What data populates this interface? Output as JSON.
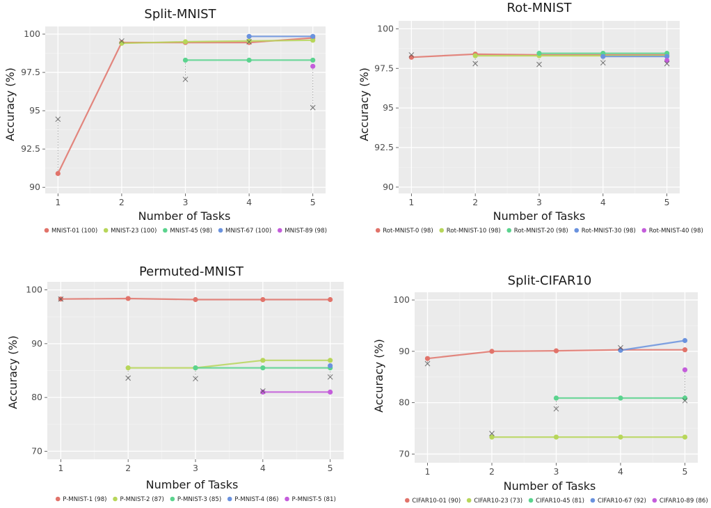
{
  "chart_data": [
    {
      "type": "line",
      "title": "Split-MNIST",
      "xlabel": "Number of Tasks",
      "ylabel": "Accuracy (%)",
      "x_ticks": [
        "1",
        "2",
        "3",
        "4",
        "5"
      ],
      "y_ticks": [
        "90",
        "92.5",
        "95",
        "97.5",
        "100"
      ],
      "ylim": [
        89.6,
        100.5
      ],
      "grid": true,
      "legend_position": "bottom",
      "series": [
        {
          "name": "MNIST-01 (100)",
          "color": "#E1736A",
          "x": [
            1,
            2,
            3,
            4,
            5
          ],
          "y": [
            90.9,
            99.45,
            99.45,
            99.45,
            99.75
          ]
        },
        {
          "name": "MNIST-23 (100)",
          "color": "#B7D65A",
          "x": [
            2,
            3,
            4,
            5
          ],
          "y": [
            99.4,
            99.5,
            99.55,
            99.6
          ]
        },
        {
          "name": "MNIST-45 (98)",
          "color": "#5BD38E",
          "x": [
            3,
            4,
            5
          ],
          "y": [
            98.3,
            98.3,
            98.3
          ]
        },
        {
          "name": "MNIST-67 (100)",
          "color": "#6A92DE",
          "x": [
            4,
            5
          ],
          "y": [
            99.85,
            99.85
          ]
        },
        {
          "name": "MNIST-89 (98)",
          "color": "#C45DDB",
          "x": [
            5
          ],
          "y": [
            97.9
          ]
        }
      ],
      "baseline_markers": [
        {
          "x": 1,
          "y": 94.45,
          "from_y": 90.9
        },
        {
          "x": 2,
          "y": 99.55,
          "from_y": 99.45
        },
        {
          "x": 3,
          "y": 97.05,
          "from_y": 98.3
        },
        {
          "x": 4,
          "y": 99.5,
          "from_y": 99.85
        },
        {
          "x": 5,
          "y": 95.2,
          "from_y": 97.9
        }
      ]
    },
    {
      "type": "line",
      "title": "Rot-MNIST",
      "xlabel": "Number of Tasks",
      "ylabel": "Accuracy (%)",
      "x_ticks": [
        "1",
        "2",
        "3",
        "4",
        "5"
      ],
      "y_ticks": [
        "90",
        "92.5",
        "95",
        "97.5",
        "100"
      ],
      "ylim": [
        89.6,
        100.5
      ],
      "grid": true,
      "legend_position": "bottom",
      "series": [
        {
          "name": "Rot-MNIST-0 (98)",
          "color": "#E1736A",
          "x": [
            1,
            2,
            3,
            4,
            5
          ],
          "y": [
            98.2,
            98.4,
            98.35,
            98.35,
            98.35
          ]
        },
        {
          "name": "Rot-MNIST-10 (98)",
          "color": "#B7D65A",
          "x": [
            2,
            3,
            4,
            5
          ],
          "y": [
            98.3,
            98.3,
            98.3,
            98.3
          ]
        },
        {
          "name": "Rot-MNIST-20 (98)",
          "color": "#5BD38E",
          "x": [
            3,
            4,
            5
          ],
          "y": [
            98.45,
            98.45,
            98.45
          ]
        },
        {
          "name": "Rot-MNIST-30 (98)",
          "color": "#6A92DE",
          "x": [
            4,
            5
          ],
          "y": [
            98.25,
            98.25
          ]
        },
        {
          "name": "Rot-MNIST-40 (98)",
          "color": "#C45DDB",
          "x": [
            5
          ],
          "y": [
            98.0
          ]
        }
      ],
      "baseline_markers": [
        {
          "x": 1,
          "y": 98.35,
          "from_y": 98.2
        },
        {
          "x": 2,
          "y": 97.8,
          "from_y": 98.3
        },
        {
          "x": 3,
          "y": 97.75,
          "from_y": 98.45
        },
        {
          "x": 4,
          "y": 97.85,
          "from_y": 98.25
        },
        {
          "x": 5,
          "y": 97.8,
          "from_y": 98.0
        }
      ]
    },
    {
      "type": "line",
      "title": "Permuted-MNIST",
      "xlabel": "Number of Tasks",
      "ylabel": "Accuracy (%)",
      "x_ticks": [
        "1",
        "2",
        "3",
        "4",
        "5"
      ],
      "y_ticks": [
        "70",
        "80",
        "90",
        "100"
      ],
      "ylim": [
        68.5,
        101.5
      ],
      "grid": true,
      "legend_position": "bottom",
      "series": [
        {
          "name": "P-MNIST-1 (98)",
          "color": "#E1736A",
          "x": [
            1,
            2,
            3,
            4,
            5
          ],
          "y": [
            98.3,
            98.4,
            98.2,
            98.2,
            98.2
          ]
        },
        {
          "name": "P-MNIST-2 (87)",
          "color": "#B7D65A",
          "x": [
            2,
            3,
            4,
            5
          ],
          "y": [
            85.5,
            85.5,
            86.9,
            86.9
          ]
        },
        {
          "name": "P-MNIST-3 (85)",
          "color": "#5BD38E",
          "x": [
            3,
            4,
            5
          ],
          "y": [
            85.5,
            85.5,
            85.5
          ]
        },
        {
          "name": "P-MNIST-4 (86)",
          "color": "#6A92DE",
          "x": [
            5
          ],
          "y": [
            85.9
          ]
        },
        {
          "name": "P-MNIST-5 (81)",
          "color": "#C45DDB",
          "x": [
            4,
            5
          ],
          "y": [
            81.0,
            81.0
          ]
        }
      ],
      "baseline_markers": [
        {
          "x": 1,
          "y": 98.3,
          "from_y": 98.3
        },
        {
          "x": 2,
          "y": 83.6,
          "from_y": 85.5
        },
        {
          "x": 3,
          "y": 83.5,
          "from_y": 85.5
        },
        {
          "x": 4,
          "y": 81.2,
          "from_y": 81.0
        },
        {
          "x": 5,
          "y": 83.8,
          "from_y": 85.9
        }
      ]
    },
    {
      "type": "line",
      "title": "Split-CIFAR10",
      "xlabel": "Number of Tasks",
      "ylabel": "Accuracy (%)",
      "x_ticks": [
        "1",
        "2",
        "3",
        "4",
        "5"
      ],
      "y_ticks": [
        "70",
        "80",
        "90",
        "100"
      ],
      "ylim": [
        68.3,
        101.5
      ],
      "grid": true,
      "legend_position": "bottom",
      "series": [
        {
          "name": "CIFAR10-01 (90)",
          "color": "#E1736A",
          "x": [
            1,
            2,
            3,
            4,
            5
          ],
          "y": [
            88.6,
            90.0,
            90.1,
            90.3,
            90.3
          ]
        },
        {
          "name": "CIFAR10-23 (73)",
          "color": "#B7D65A",
          "x": [
            2,
            3,
            4,
            5
          ],
          "y": [
            73.3,
            73.3,
            73.3,
            73.3
          ]
        },
        {
          "name": "CIFAR10-45 (81)",
          "color": "#5BD38E",
          "x": [
            3,
            4,
            5
          ],
          "y": [
            80.9,
            80.9,
            80.9
          ]
        },
        {
          "name": "CIFAR10-67 (92)",
          "color": "#6A92DE",
          "x": [
            4,
            5
          ],
          "y": [
            90.2,
            92.1
          ]
        },
        {
          "name": "CIFAR10-89 (86)",
          "color": "#C45DDB",
          "x": [
            5
          ],
          "y": [
            86.4
          ]
        }
      ],
      "baseline_markers": [
        {
          "x": 1,
          "y": 87.6,
          "from_y": 88.6
        },
        {
          "x": 2,
          "y": 74.0,
          "from_y": 73.3
        },
        {
          "x": 3,
          "y": 78.8,
          "from_y": 80.9
        },
        {
          "x": 4,
          "y": 90.7,
          "from_y": 90.2
        },
        {
          "x": 5,
          "y": 80.4,
          "from_y": 86.4
        }
      ]
    }
  ]
}
